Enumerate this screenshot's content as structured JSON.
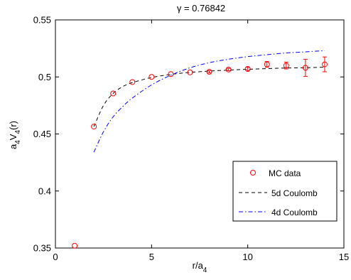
{
  "chart_data": {
    "type": "scatter",
    "title": "γ = 0.76842",
    "xlabel": "r/a",
    "xlabel_sub": "4",
    "ylabel_parts": [
      "a",
      "4",
      "V",
      "4",
      "(r)"
    ],
    "xlim": [
      0,
      15
    ],
    "ylim": [
      0.35,
      0.55
    ],
    "xticks": [
      0,
      5,
      10,
      15
    ],
    "xtick_labels": [
      "0",
      "5",
      "10",
      "15"
    ],
    "yticks": [
      0.35,
      0.4,
      0.45,
      0.5,
      0.55
    ],
    "ytick_labels": [
      "0.35",
      "0.4",
      "0.45",
      "0.5",
      "0.55"
    ],
    "grid": false,
    "legend_position": "bottom-right",
    "series": [
      {
        "name": "MC data",
        "kind": "markers",
        "color": "#ff0000",
        "x": [
          1,
          2,
          3,
          4,
          5,
          6,
          7,
          8,
          9,
          10,
          11,
          12,
          13,
          14
        ],
        "y": [
          0.352,
          0.4565,
          0.4855,
          0.4955,
          0.5,
          0.5025,
          0.504,
          0.5045,
          0.5065,
          0.507,
          0.511,
          0.51,
          0.508,
          0.511
        ],
        "err": [
          0,
          0,
          0,
          0,
          0,
          0,
          0,
          0.001,
          0.001,
          0.0015,
          0.0025,
          0.003,
          0.0075,
          0.0065
        ]
      },
      {
        "name": "5d Coulomb",
        "kind": "line",
        "dash": "dashed",
        "color": "#000000",
        "x": [
          2,
          2.5,
          3,
          3.5,
          4,
          5,
          6,
          7,
          8,
          9,
          10,
          11,
          12,
          13,
          14
        ],
        "y": [
          0.4565,
          0.475,
          0.4855,
          0.4915,
          0.495,
          0.4995,
          0.5022,
          0.504,
          0.5051,
          0.506,
          0.5067,
          0.5073,
          0.5078,
          0.5081,
          0.5085
        ]
      },
      {
        "name": "4d Coulomb",
        "kind": "line",
        "dash": "dashdot",
        "color": "#0000ff",
        "x": [
          2,
          2.5,
          3,
          3.5,
          4,
          5,
          6,
          7,
          8,
          9,
          10,
          11,
          12,
          13,
          14
        ],
        "y": [
          0.434,
          0.452,
          0.465,
          0.474,
          0.4815,
          0.493,
          0.5015,
          0.508,
          0.5125,
          0.5155,
          0.5178,
          0.5195,
          0.521,
          0.522,
          0.523
        ]
      }
    ]
  }
}
